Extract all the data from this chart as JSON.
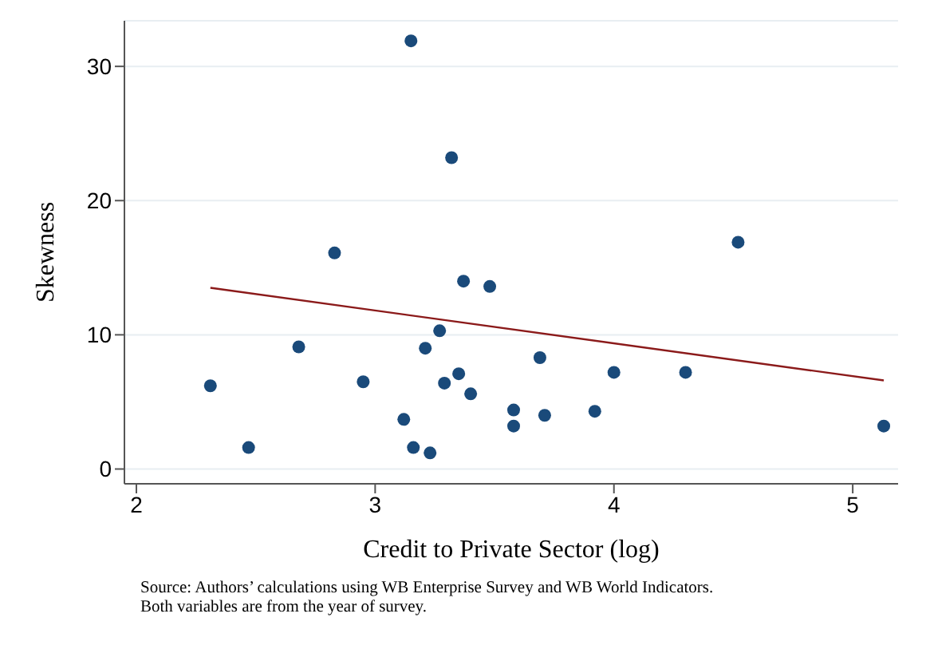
{
  "chart_data": {
    "type": "scatter",
    "xlabel": "Credit to Private Sector (log)",
    "ylabel": "Skewness",
    "xlim": [
      1.95,
      5.19
    ],
    "ylim": [
      -1.1,
      33.4
    ],
    "xticks": [
      2,
      3,
      4,
      5
    ],
    "yticks": [
      0,
      10,
      20,
      30
    ],
    "grid": "y",
    "series": [
      {
        "marker": "circle",
        "color": "#1a4a7a",
        "x": [
          2.31,
          2.47,
          2.68,
          2.83,
          2.95,
          3.15,
          3.12,
          3.16,
          3.23,
          3.21,
          3.27,
          3.32,
          3.29,
          3.35,
          3.37,
          3.4,
          3.48,
          3.58,
          3.58,
          3.69,
          3.71,
          3.92,
          4.0,
          4.3,
          4.52,
          5.13
        ],
        "values": [
          6.2,
          1.6,
          9.1,
          16.1,
          6.5,
          31.9,
          3.7,
          1.6,
          1.2,
          9.0,
          10.3,
          23.2,
          6.4,
          7.1,
          14.0,
          5.6,
          13.6,
          3.2,
          4.4,
          8.3,
          4.0,
          4.3,
          7.2,
          7.2,
          16.9,
          3.2
        ]
      },
      {
        "type": "line",
        "marker": "none",
        "color": "#8b1a1a",
        "x": [
          2.31,
          5.13
        ],
        "values": [
          13.5,
          6.6
        ]
      }
    ],
    "annotations": [
      "Source: Authors’ calculations using WB Enterprise Survey and WB World Indicators.",
      "Both variables are from the year of survey."
    ]
  }
}
